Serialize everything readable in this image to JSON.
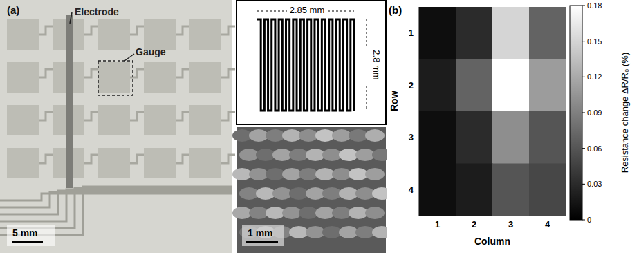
{
  "panel_a": {
    "label": "(a)",
    "annotations": [
      "Electrode",
      "Gauge"
    ],
    "scale_bar": "5 mm",
    "gauge_width": "2.85 mm",
    "gauge_height": "2.8 mm",
    "inset_scale_bar": "1 mm"
  },
  "chart_data": {
    "type": "heatmap",
    "panel_label": "(b)",
    "x_label": "Column",
    "y_label": "Row",
    "x": [
      1,
      2,
      3,
      4
    ],
    "y": [
      1,
      2,
      3,
      4
    ],
    "xlim": [
      0.5,
      4.5
    ],
    "ylim": [
      0.5,
      4.5
    ],
    "xticks": [
      1,
      2,
      3,
      4
    ],
    "yticks": [
      1,
      2,
      3,
      4
    ],
    "cells": [
      [
        0.01,
        0.03,
        0.15,
        0.07
      ],
      [
        0.02,
        0.07,
        0.18,
        0.11
      ],
      [
        0.01,
        0.03,
        0.1,
        0.06
      ],
      [
        0.01,
        0.02,
        0.06,
        0.05
      ]
    ],
    "colorbar": {
      "label": "Resistance change ΔR/R₀ (%)",
      "range": [
        0,
        0.18
      ],
      "ticks": [
        0,
        0.03,
        0.06,
        0.09,
        0.12,
        0.15,
        0.18
      ]
    }
  }
}
